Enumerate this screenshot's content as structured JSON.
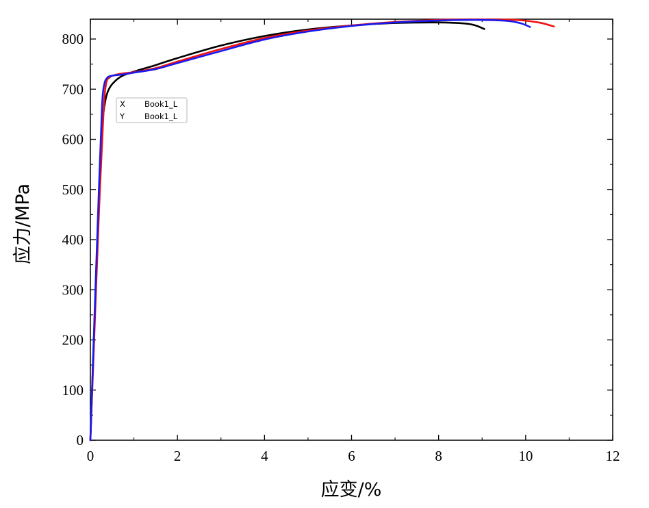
{
  "chart_data": {
    "type": "line",
    "xlabel": "应变/%",
    "ylabel": "应力/MPa",
    "xlim": [
      0,
      12
    ],
    "ylim": [
      0,
      850
    ],
    "xticks": [
      0,
      2,
      4,
      6,
      8,
      10,
      12
    ],
    "yticks": [
      0,
      100,
      200,
      300,
      400,
      500,
      600,
      700,
      800
    ],
    "grid": false,
    "legend": "none",
    "series": [
      {
        "color": "#000000",
        "x": [
          0,
          0.1,
          0.2,
          0.28,
          0.34,
          0.4,
          0.5,
          0.7,
          1.0,
          1.5,
          2.0,
          3.0,
          4.0,
          5.0,
          6.0,
          7.0,
          8.0,
          8.6,
          8.85,
          9.05
        ],
        "y": [
          0,
          250,
          480,
          630,
          675,
          695,
          710,
          725,
          735,
          748,
          762,
          787,
          806,
          819,
          827,
          832,
          833,
          831,
          827,
          820
        ]
      },
      {
        "color": "#ee1111",
        "x": [
          0,
          0.1,
          0.2,
          0.3,
          0.36,
          0.45,
          0.6,
          0.8,
          1.0,
          1.5,
          2.0,
          3.0,
          4.0,
          5.0,
          6.0,
          7.0,
          8.0,
          9.0,
          9.8,
          10.3,
          10.65
        ],
        "y": [
          0,
          230,
          460,
          650,
          710,
          724,
          729,
          732,
          734,
          742,
          755,
          780,
          802,
          817,
          827,
          834,
          838,
          839,
          838,
          833,
          825
        ]
      },
      {
        "color": "#1a1aee",
        "x": [
          0,
          0.1,
          0.2,
          0.27,
          0.32,
          0.38,
          0.45,
          0.6,
          0.8,
          1.0,
          1.5,
          2.0,
          3.0,
          4.0,
          5.0,
          6.0,
          7.0,
          8.0,
          9.0,
          9.6,
          9.9,
          10.1
        ],
        "y": [
          0,
          260,
          510,
          670,
          710,
          722,
          726,
          728,
          730,
          733,
          740,
          752,
          776,
          799,
          815,
          826,
          833,
          837,
          838,
          836,
          831,
          824
        ]
      }
    ]
  },
  "tooltip": {
    "x_key": "X",
    "x_value": "Book1_L",
    "y_key": "Y",
    "y_value": "Book1_L"
  }
}
